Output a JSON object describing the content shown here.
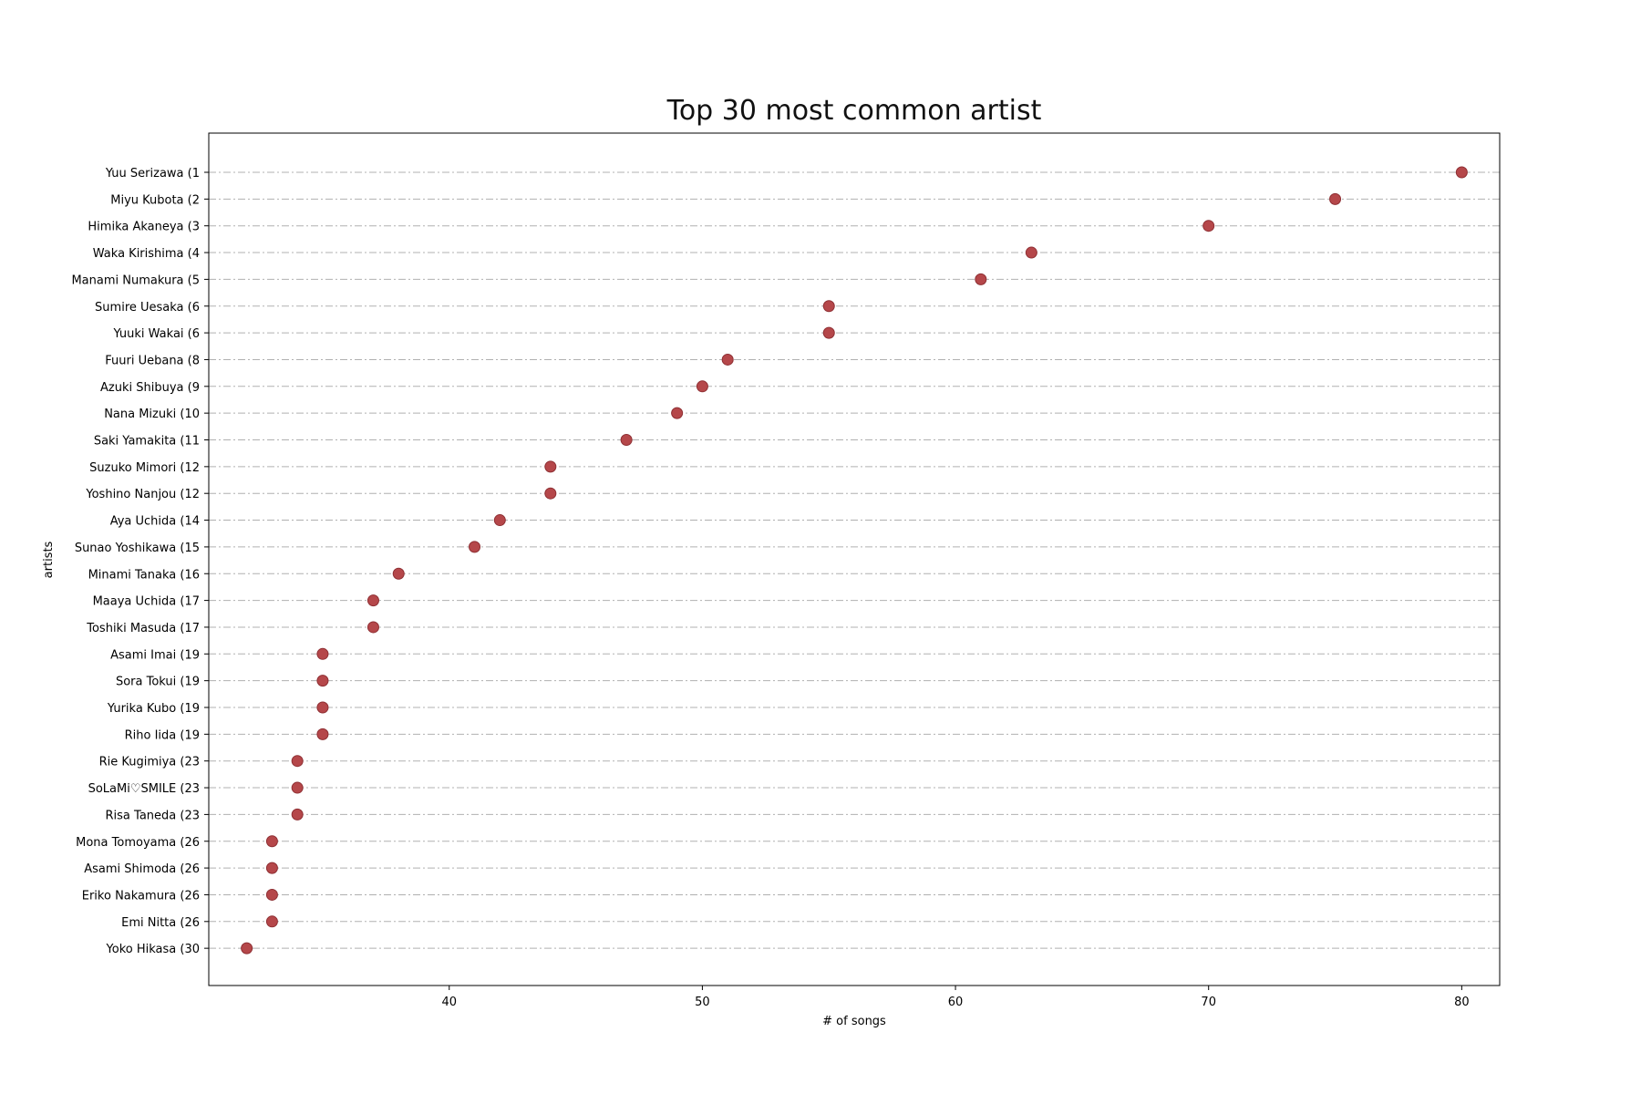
{
  "chart_data": {
    "type": "scatter",
    "title": "Top 30 most common artist",
    "xlabel": "# of songs",
    "ylabel": "artists",
    "xlim": [
      30.5,
      81.5
    ],
    "x_ticks": [
      40,
      50,
      60,
      70,
      80
    ],
    "grid": "horizontal dash-dot",
    "marker_color": "#b5474a",
    "grid_color": "#b0b0b0",
    "categories": [
      "Yuu Serizawa (1",
      "Miyu Kubota (2",
      "Himika Akaneya (3",
      "Waka Kirishima (4",
      "Manami Numakura (5",
      "Sumire Uesaka (6",
      "Yuuki Wakai (6",
      "Fuuri Uebana (8",
      "Azuki Shibuya (9",
      "Nana Mizuki (10",
      "Saki Yamakita (11",
      "Suzuko Mimori (12",
      "Yoshino Nanjou (12",
      "Aya Uchida (14",
      "Sunao Yoshikawa (15",
      "Minami Tanaka (16",
      "Maaya Uchida (17",
      "Toshiki Masuda (17",
      "Asami Imai (19",
      "Sora Tokui (19",
      "Yurika Kubo (19",
      "Riho Iida (19",
      "Rie Kugimiya (23",
      "SoLaMi♡SMILE (23",
      "Risa Taneda (23",
      "Mona Tomoyama (26",
      "Asami Shimoda (26",
      "Eriko Nakamura (26",
      "Emi Nitta (26",
      "Yoko Hikasa (30"
    ],
    "values": [
      80,
      75,
      70,
      63,
      61,
      55,
      55,
      51,
      50,
      49,
      47,
      44,
      44,
      42,
      41,
      38,
      37,
      37,
      35,
      35,
      35,
      35,
      34,
      34,
      34,
      33,
      33,
      33,
      33,
      32
    ]
  }
}
